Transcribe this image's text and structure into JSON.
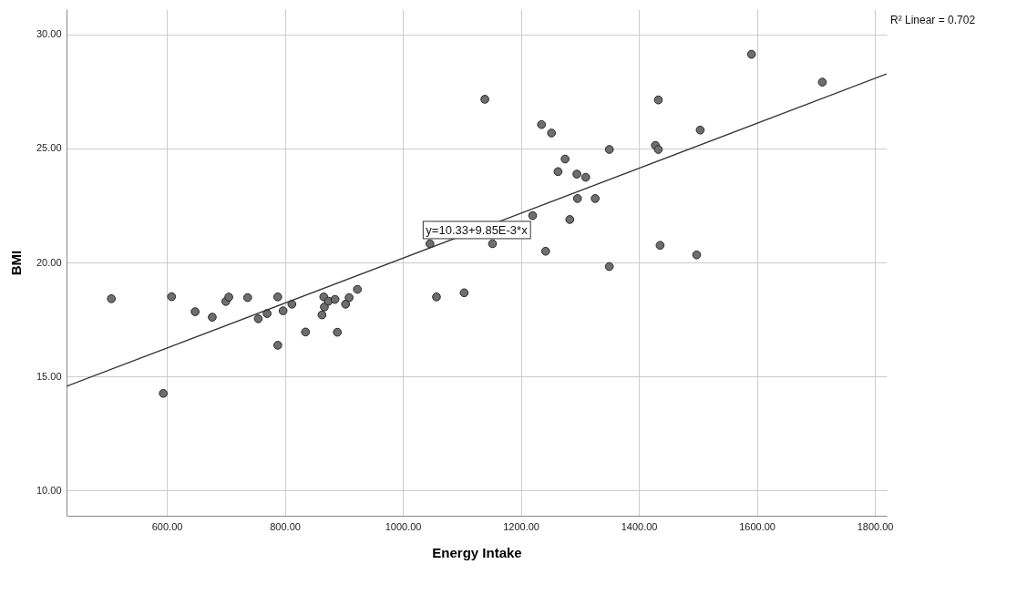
{
  "chart_data": {
    "type": "scatter",
    "xlabel": "Energy Intake",
    "ylabel": "BMI",
    "xlim": [
      430,
      1820
    ],
    "ylim": [
      8.9,
      31.1
    ],
    "xticks": [
      {
        "value": 600,
        "label": "600.00"
      },
      {
        "value": 800,
        "label": "800.00"
      },
      {
        "value": 1000,
        "label": "1000.00"
      },
      {
        "value": 1200,
        "label": "1200.00"
      },
      {
        "value": 1400,
        "label": "1400.00"
      },
      {
        "value": 1600,
        "label": "1600.00"
      },
      {
        "value": 1800,
        "label": "1800.00"
      }
    ],
    "yticks": [
      {
        "value": 10,
        "label": "10.00"
      },
      {
        "value": 15,
        "label": "15.00"
      },
      {
        "value": 20,
        "label": "20.00"
      },
      {
        "value": 25,
        "label": "25.00"
      },
      {
        "value": 30,
        "label": "30.00"
      }
    ],
    "grid": true,
    "series": [
      {
        "type": "scatter",
        "marker": "circle",
        "color": "#6e6e6e",
        "x": [
          506,
          608,
          594,
          648,
          677,
          700,
          705,
          737,
          755,
          770,
          788,
          788,
          797,
          812,
          835,
          863,
          866,
          867,
          874,
          885,
          889,
          903,
          909,
          923,
          1057,
          1104,
          1139,
          1046,
          1152,
          1591,
          1711,
          1433,
          1235,
          1252,
          1504,
          1350,
          1428,
          1433,
          1275,
          1263,
          1295,
          1310,
          1296,
          1326,
          1220,
          1283,
          1242,
          1436,
          1498,
          1350
        ],
        "values": [
          18.41,
          18.5,
          14.26,
          17.84,
          17.6,
          18.29,
          18.48,
          18.46,
          17.53,
          17.76,
          18.49,
          16.37,
          17.88,
          18.17,
          16.95,
          17.7,
          18.49,
          18.05,
          18.3,
          18.38,
          16.94,
          18.17,
          18.46,
          18.82,
          18.49,
          18.67,
          27.15,
          20.82,
          20.82,
          29.12,
          27.9,
          27.12,
          26.04,
          25.67,
          25.8,
          24.95,
          25.13,
          24.95,
          24.53,
          23.98,
          23.87,
          23.73,
          22.8,
          22.8,
          22.05,
          21.88,
          20.49,
          20.75,
          20.33,
          19.82
        ]
      },
      {
        "type": "line",
        "marker": "none",
        "color": "#333333",
        "line_style": "solid",
        "x": [
          430,
          1820
        ],
        "values": [
          14.57,
          28.26
        ]
      }
    ],
    "annotations": [
      {
        "text": "y=10.33+9.85E-3*x",
        "x": 1125,
        "y": 21.4
      },
      "R² Linear = 0.702"
    ]
  }
}
